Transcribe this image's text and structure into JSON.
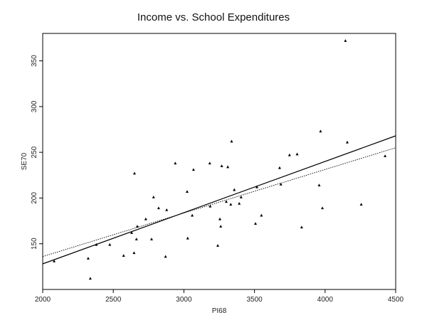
{
  "chart_data": {
    "type": "scatter",
    "title": "Income vs. School Expenditures",
    "xlabel": "PI68",
    "ylabel": "SE70",
    "xlim": [
      2000,
      4500
    ],
    "ylim": [
      100,
      380
    ],
    "x_ticks": [
      2000,
      2500,
      3000,
      3500,
      4000,
      4500
    ],
    "y_ticks": [
      150,
      200,
      250,
      300,
      350
    ],
    "grid": false,
    "points": [
      {
        "x": 2081,
        "y": 131
      },
      {
        "x": 2322,
        "y": 134
      },
      {
        "x": 2337,
        "y": 112
      },
      {
        "x": 2380,
        "y": 149
      },
      {
        "x": 2475,
        "y": 149
      },
      {
        "x": 2573,
        "y": 137
      },
      {
        "x": 2630,
        "y": 162
      },
      {
        "x": 2647,
        "y": 140
      },
      {
        "x": 2650,
        "y": 227
      },
      {
        "x": 2664,
        "y": 155
      },
      {
        "x": 2670,
        "y": 169
      },
      {
        "x": 2730,
        "y": 177
      },
      {
        "x": 2771,
        "y": 155
      },
      {
        "x": 2785,
        "y": 201
      },
      {
        "x": 2821,
        "y": 189
      },
      {
        "x": 2870,
        "y": 136
      },
      {
        "x": 2878,
        "y": 187
      },
      {
        "x": 2939,
        "y": 238
      },
      {
        "x": 3023,
        "y": 207
      },
      {
        "x": 3027,
        "y": 156
      },
      {
        "x": 3059,
        "y": 181
      },
      {
        "x": 3068,
        "y": 231
      },
      {
        "x": 3183,
        "y": 238
      },
      {
        "x": 3186,
        "y": 191
      },
      {
        "x": 3240,
        "y": 148
      },
      {
        "x": 3255,
        "y": 177
      },
      {
        "x": 3261,
        "y": 169
      },
      {
        "x": 3268,
        "y": 235
      },
      {
        "x": 3300,
        "y": 196
      },
      {
        "x": 3311,
        "y": 234
      },
      {
        "x": 3332,
        "y": 193
      },
      {
        "x": 3338,
        "y": 262
      },
      {
        "x": 3357,
        "y": 209
      },
      {
        "x": 3392,
        "y": 194
      },
      {
        "x": 3405,
        "y": 201
      },
      {
        "x": 3507,
        "y": 172
      },
      {
        "x": 3517,
        "y": 212
      },
      {
        "x": 3549,
        "y": 181
      },
      {
        "x": 3678,
        "y": 233
      },
      {
        "x": 3687,
        "y": 215
      },
      {
        "x": 3748,
        "y": 247
      },
      {
        "x": 3802,
        "y": 248
      },
      {
        "x": 3834,
        "y": 168
      },
      {
        "x": 3958,
        "y": 214
      },
      {
        "x": 3968,
        "y": 273
      },
      {
        "x": 3981,
        "y": 189
      },
      {
        "x": 4144,
        "y": 372
      },
      {
        "x": 4157,
        "y": 261
      },
      {
        "x": 4256,
        "y": 193
      },
      {
        "x": 4425,
        "y": 246
      }
    ],
    "lines": [
      {
        "style": "solid",
        "x": [
          2000,
          4500
        ],
        "y": [
          128,
          268
        ]
      },
      {
        "style": "dotted",
        "x": [
          2000,
          4500
        ],
        "y": [
          136,
          255
        ]
      }
    ]
  }
}
